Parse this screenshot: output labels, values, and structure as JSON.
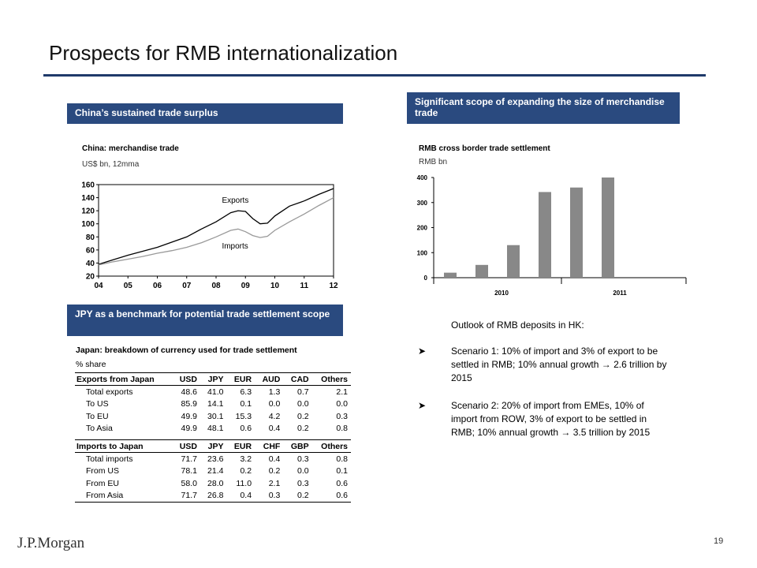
{
  "title": "Prospects for RMB internationalization",
  "page_number": "19",
  "logo": "J.P.Morgan",
  "colors": {
    "header_bg": "#2a4a7f",
    "title_rule": "#1f3a6a",
    "bar": "#888888",
    "imports_line": "#999999"
  },
  "sections": {
    "trade_surplus": "China’s sustained trade surplus",
    "expanding_scope": "Significant scope of expanding the size of merchandise trade",
    "jpy_benchmark": "JPY as a benchmark for potential trade settlement scope"
  },
  "chart_data": [
    {
      "type": "line",
      "title": "China: merchandise trade",
      "subtitle": "US$ bn, 12mma",
      "x": [
        4,
        5,
        6,
        7,
        8,
        9,
        10,
        11,
        12
      ],
      "xticks": [
        "04",
        "05",
        "06",
        "07",
        "08",
        "09",
        "10",
        "11",
        "12"
      ],
      "ylim": [
        20,
        160
      ],
      "yticks": [
        20,
        40,
        60,
        80,
        100,
        120,
        140,
        160
      ],
      "series": [
        {
          "name": "Exports",
          "color": "#000000",
          "x": [
            4,
            4.5,
            5,
            5.5,
            6,
            6.5,
            7,
            7.5,
            8,
            8.5,
            8.75,
            9,
            9.25,
            9.5,
            9.75,
            10,
            10.5,
            11,
            11.5,
            12
          ],
          "values": [
            38,
            45,
            52,
            58,
            64,
            72,
            80,
            92,
            103,
            117,
            120,
            119,
            108,
            100,
            101,
            112,
            127,
            135,
            145,
            154
          ]
        },
        {
          "name": "Imports",
          "color": "#999999",
          "x": [
            4,
            4.5,
            5,
            5.5,
            6,
            6.5,
            7,
            7.5,
            8,
            8.5,
            8.75,
            9,
            9.25,
            9.5,
            9.75,
            10,
            10.5,
            11,
            11.5,
            12
          ],
          "values": [
            37,
            42,
            46,
            50,
            55,
            59,
            64,
            71,
            80,
            90,
            92,
            88,
            82,
            79,
            81,
            90,
            103,
            115,
            128,
            140
          ]
        }
      ]
    },
    {
      "type": "bar",
      "title": "RMB cross border trade settlement",
      "subtitle": "RMB bn",
      "xlabels": [
        "2010",
        "2011"
      ],
      "ylim": [
        0,
        400
      ],
      "yticks": [
        0,
        100,
        200,
        300,
        400
      ],
      "values": [
        20,
        51,
        130,
        342,
        360,
        400
      ]
    }
  ],
  "japan_table": {
    "title": "Japan: breakdown of currency used for trade settlement",
    "unit": "% share",
    "exports": {
      "header": [
        "Exports from Japan",
        "USD",
        "JPY",
        "EUR",
        "AUD",
        "CAD",
        "Others"
      ],
      "rows": [
        [
          "Total exports",
          "48.6",
          "41.0",
          "6.3",
          "1.3",
          "0.7",
          "2.1"
        ],
        [
          "To US",
          "85.9",
          "14.1",
          "0.1",
          "0.0",
          "0.0",
          "0.0"
        ],
        [
          "To EU",
          "49.9",
          "30.1",
          "15.3",
          "4.2",
          "0.2",
          "0.3"
        ],
        [
          "To Asia",
          "49.9",
          "48.1",
          "0.6",
          "0.4",
          "0.2",
          "0.8"
        ]
      ]
    },
    "imports": {
      "header": [
        "Imports to Japan",
        "USD",
        "JPY",
        "EUR",
        "CHF",
        "GBP",
        "Others"
      ],
      "rows": [
        [
          "Total imports",
          "71.7",
          "23.6",
          "3.2",
          "0.4",
          "0.3",
          "0.8"
        ],
        [
          "From US",
          "78.1",
          "21.4",
          "0.2",
          "0.2",
          "0.0",
          "0.1"
        ],
        [
          "From EU",
          "58.0",
          "28.0",
          "11.0",
          "2.1",
          "0.3",
          "0.6"
        ],
        [
          "From Asia",
          "71.7",
          "26.8",
          "0.4",
          "0.3",
          "0.2",
          "0.6"
        ]
      ]
    }
  },
  "outlook": {
    "heading": "Outlook of RMB deposits in HK:",
    "bullets": [
      "Scenario 1: 10% of import and 3% of export to be settled in RMB; 10% annual growth → 2.6 trillion by 2015",
      "Scenario 2: 20% of import from EMEs, 10% of import from ROW, 3% of export to be settled in RMB; 10% annual growth → 3.5 trillion by 2015"
    ]
  }
}
